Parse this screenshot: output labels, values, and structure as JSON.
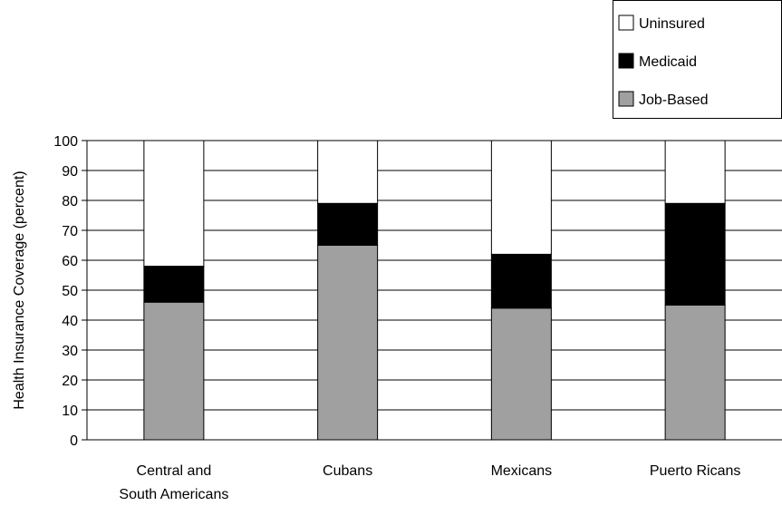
{
  "chart_data": {
    "type": "bar",
    "stacked": true,
    "categories": [
      "Central and South Americans",
      "Cubans",
      "Mexicans",
      "Puerto Ricans"
    ],
    "category_label_lines": [
      [
        "Central and",
        "South Americans"
      ],
      [
        "Cubans"
      ],
      [
        "Mexicans"
      ],
      [
        "Puerto Ricans"
      ]
    ],
    "series": [
      {
        "name": "Job-Based",
        "values": [
          46,
          65,
          44,
          45
        ],
        "color": "#a0a0a0"
      },
      {
        "name": "Medicaid",
        "values": [
          12,
          14,
          18,
          34
        ],
        "color": "#000000"
      },
      {
        "name": "Uninsured",
        "values": [
          42,
          21,
          38,
          21
        ],
        "color": "#ffffff"
      }
    ],
    "legend_order": [
      "Uninsured",
      "Medicaid",
      "Job-Based"
    ],
    "legend_position": "top-right",
    "ylabel": "Health Insurance Coverage (percent)",
    "xlabel": "",
    "ylim": [
      0,
      100
    ],
    "yticks": [
      0,
      10,
      20,
      30,
      40,
      50,
      60,
      70,
      80,
      90,
      100
    ],
    "grid": true
  }
}
